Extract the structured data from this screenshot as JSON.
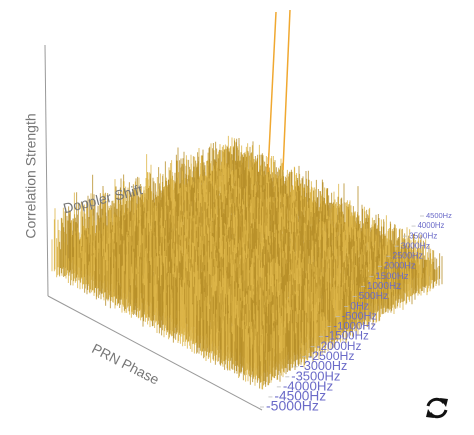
{
  "chart_data": {
    "type": "surface",
    "z_label": "Correlation Strength",
    "y_label": "Doppler Shift",
    "x_label": "PRN Phase",
    "ylim": [
      -5000,
      4500
    ],
    "yticks": [
      {
        "value": -5000,
        "label": "-5000Hz"
      },
      {
        "value": -4500,
        "label": "-4500Hz"
      },
      {
        "value": -4000,
        "label": "-4000Hz"
      },
      {
        "value": -3500,
        "label": "-3500Hz"
      },
      {
        "value": -3000,
        "label": "-3000Hz"
      },
      {
        "value": -2500,
        "label": "-2500Hz"
      },
      {
        "value": -2000,
        "label": "-2000Hz"
      },
      {
        "value": -1500,
        "label": "-1500Hz"
      },
      {
        "value": -1000,
        "label": "-1000Hz"
      },
      {
        "value": -500,
        "label": "-500Hz"
      },
      {
        "value": 0,
        "label": "0Hz"
      },
      {
        "value": 500,
        "label": "500Hz"
      },
      {
        "value": 1000,
        "label": "1000Hz"
      },
      {
        "value": 1500,
        "label": "1500Hz"
      },
      {
        "value": 2000,
        "label": "2000Hz"
      },
      {
        "value": 2500,
        "label": "2500Hz"
      },
      {
        "value": 3000,
        "label": "3000Hz"
      },
      {
        "value": 3500,
        "label": "3500Hz"
      },
      {
        "value": 4000,
        "label": "4000Hz"
      },
      {
        "value": 4500,
        "label": "4500Hz"
      }
    ]
  }
}
